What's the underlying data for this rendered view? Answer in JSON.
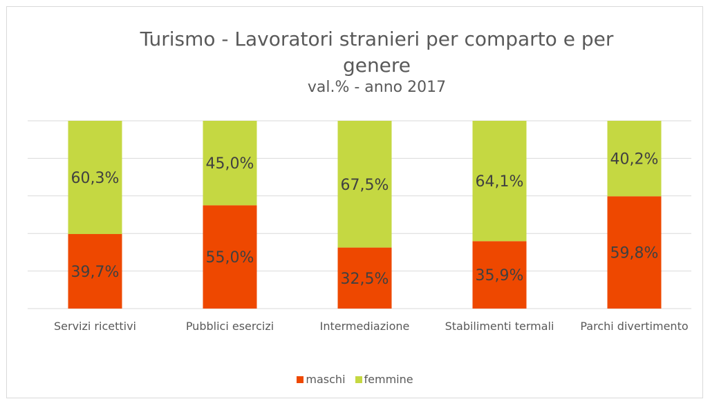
{
  "chart_data": {
    "type": "stacked_bar",
    "title": "Turismo - Lavoratori stranieri per comparto e per genere",
    "subtitle": "val.% - anno 2017",
    "categories": [
      "Servizi ricettivi",
      "Pubblici esercizi",
      "Intermediazione",
      "Stabilimenti termali",
      "Parchi divertimento"
    ],
    "series": [
      {
        "name": "maschi",
        "color": "#ee4800",
        "values": [
          39.7,
          55.0,
          32.5,
          35.9,
          59.8
        ],
        "value_labels": [
          "39,7%",
          "55,0%",
          "32,5%",
          "35,9%",
          "59,8%"
        ]
      },
      {
        "name": "femmine",
        "color": "#c5d842",
        "values": [
          60.3,
          45.0,
          67.5,
          64.1,
          40.2
        ],
        "value_labels": [
          "60,3%",
          "45,0%",
          "67,5%",
          "64,1%",
          "40,2%"
        ]
      }
    ],
    "ylim": [
      0,
      100
    ],
    "yticks": [
      0,
      20,
      40,
      60,
      80,
      100
    ],
    "grid": true,
    "legend": "bottom"
  }
}
